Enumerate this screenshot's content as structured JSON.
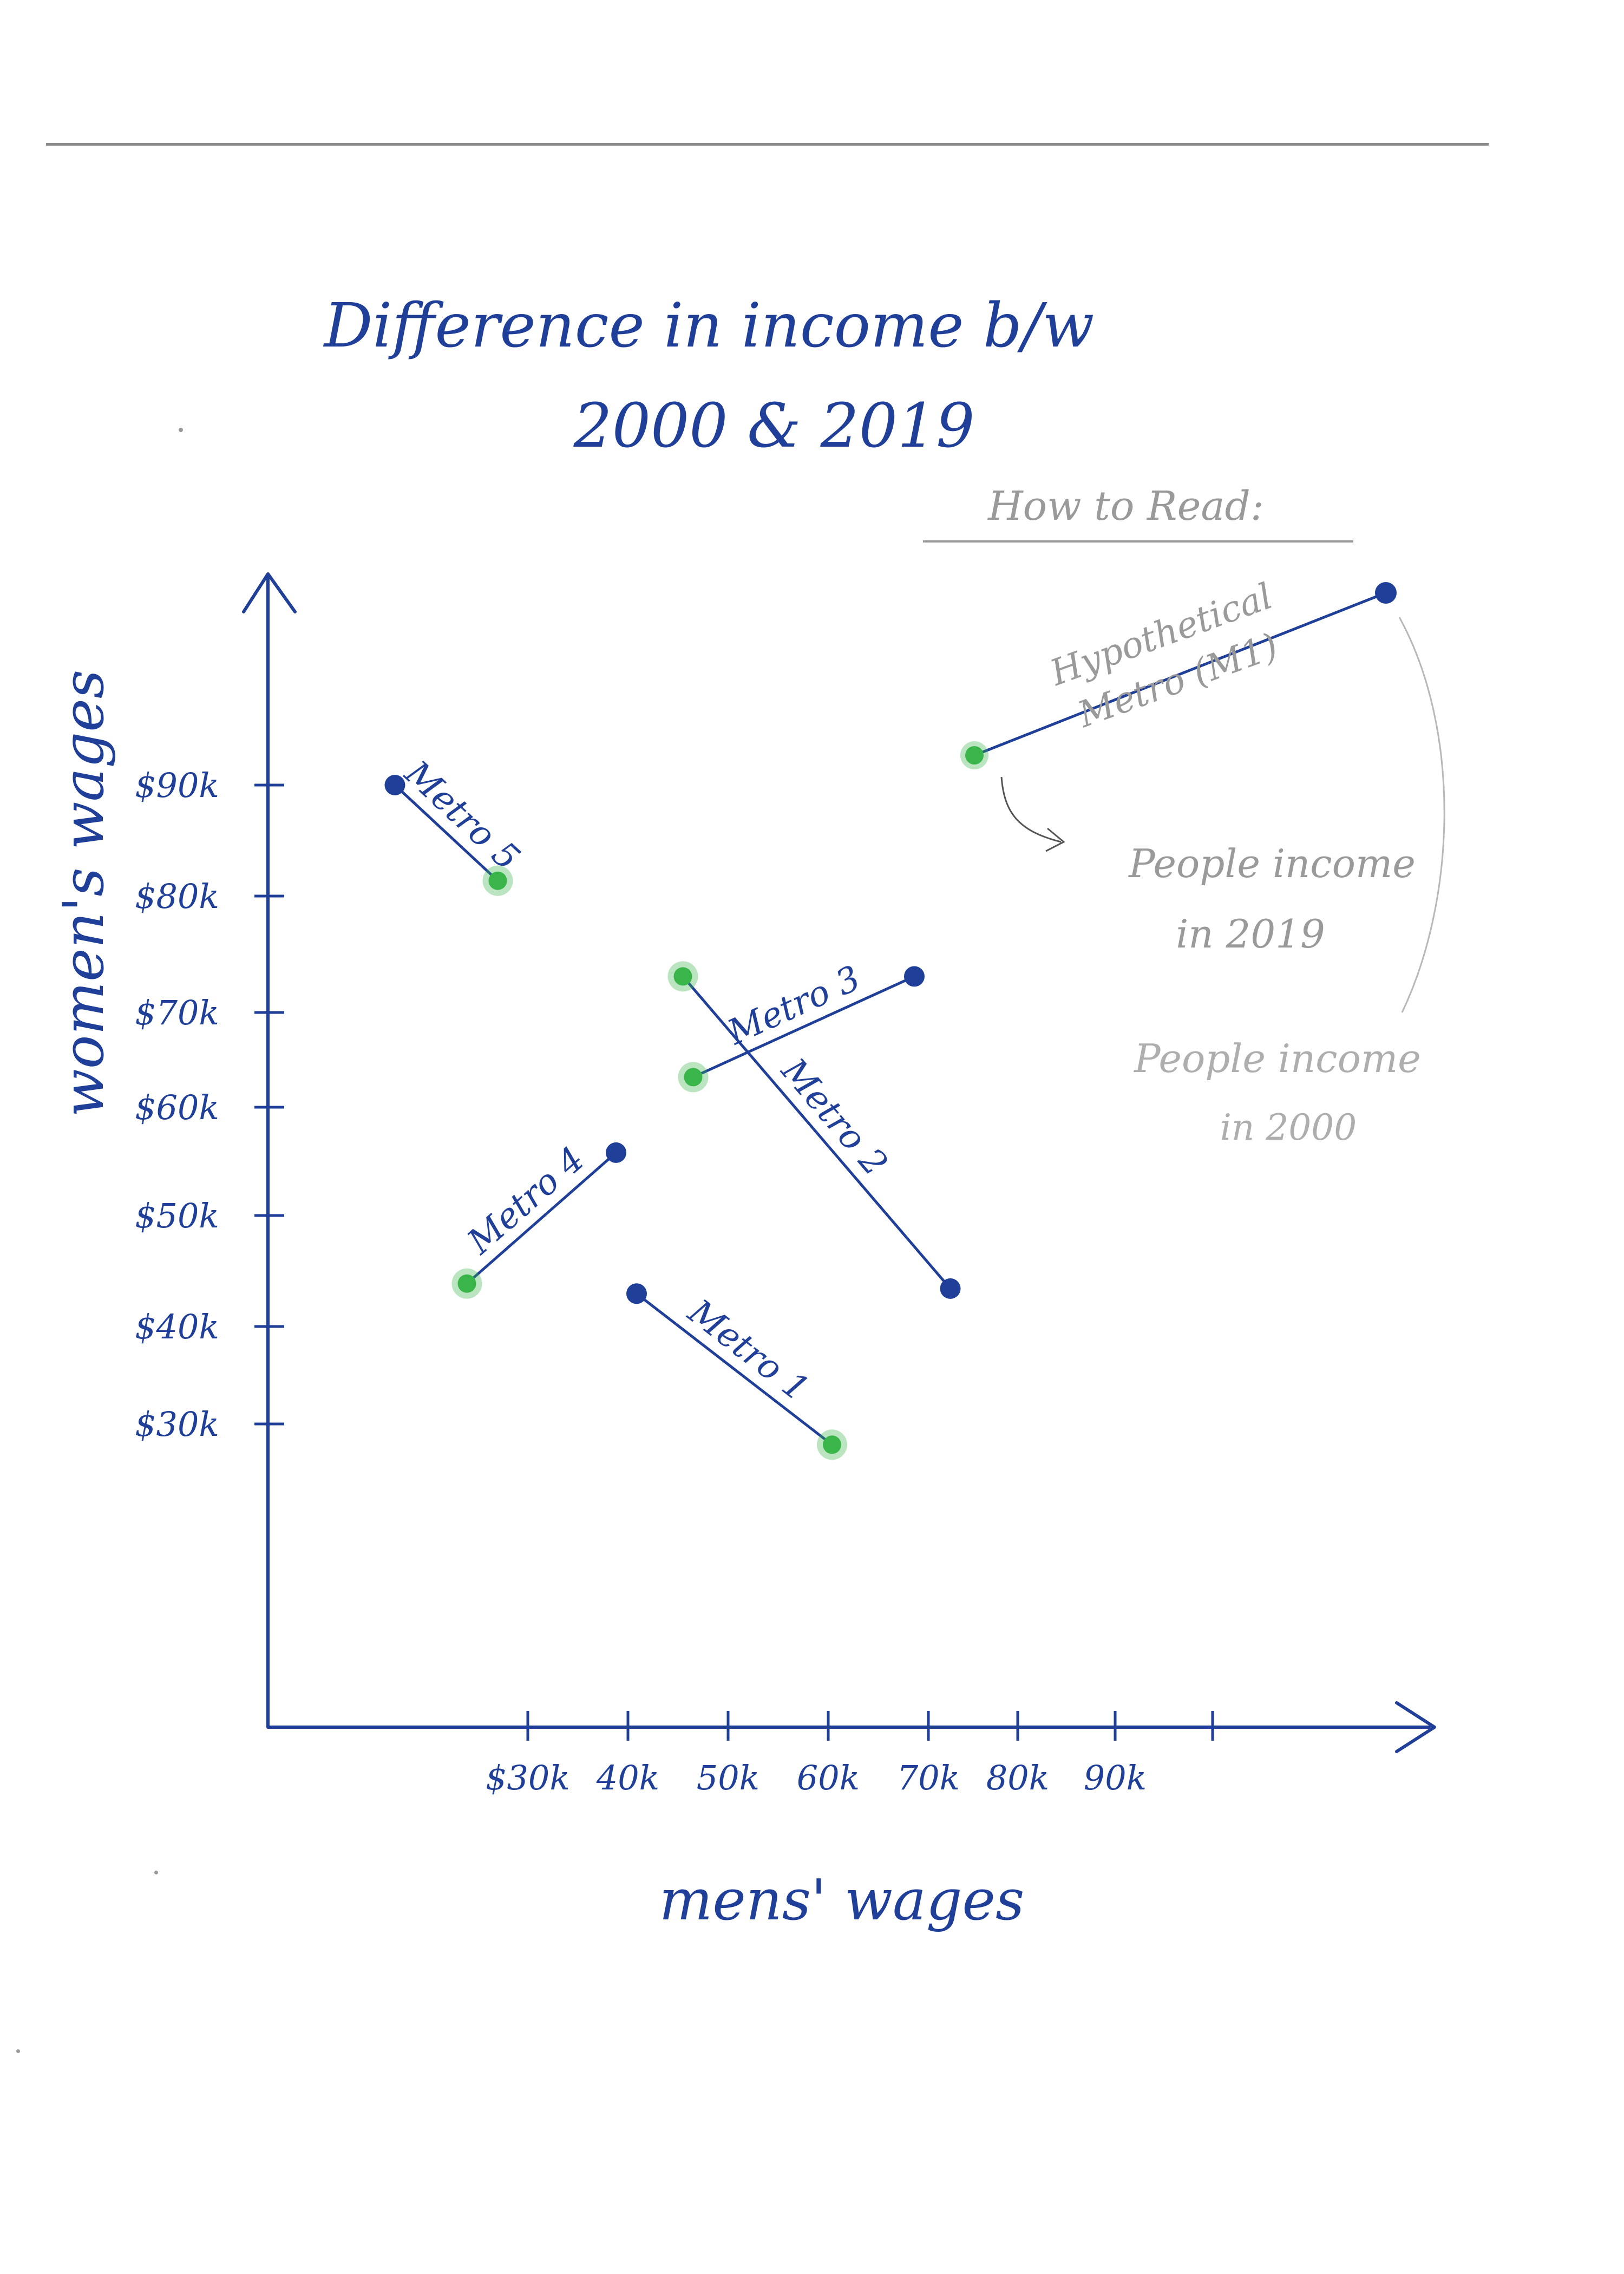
{
  "chart_data": {
    "type": "scatter",
    "title_line1": "Difference in income b/w",
    "title_line2": "2000 & 2019",
    "xlabel": "mens' wages",
    "ylabel": "women's wages",
    "x_ticks": [
      "$30k",
      "40k",
      "50k",
      "60k",
      "70k",
      "80k",
      "90k"
    ],
    "y_ticks": [
      "$90k",
      "$80k",
      "$70k",
      "$60k",
      "$50k",
      "$40k",
      "$30k"
    ],
    "colors": {
      "year_2000": "#1f3f99",
      "year_2019": "#39b54a",
      "ink": "#1f3f99"
    },
    "series": [
      {
        "name": "Metro 1",
        "from_2000": {
          "x": 44,
          "y": 39.5
        },
        "to_2019": {
          "x": 63,
          "y": 24.5
        }
      },
      {
        "name": "Metro 2",
        "from_2000": {
          "x": 74.5,
          "y": 40
        },
        "to_2019": {
          "x": 48.5,
          "y": 71
        }
      },
      {
        "name": "Metro 3",
        "from_2000": {
          "x": 71,
          "y": 71
        },
        "to_2019": {
          "x": 49.5,
          "y": 61
        }
      },
      {
        "name": "Metro 4",
        "from_2000": {
          "x": 42,
          "y": 53.5
        },
        "to_2019": {
          "x": 27.5,
          "y": 40.5
        }
      },
      {
        "name": "Metro 5",
        "from_2000": {
          "x": 20.5,
          "y": 90
        },
        "to_2019": {
          "x": 30.5,
          "y": 80.5
        }
      }
    ]
  },
  "legend": {
    "heading": "How to Read:",
    "example_label_line1": "Hypothetical",
    "example_label_line2": "Metro (M1)",
    "note_2019_line1": "People income",
    "note_2019_line2": "in 2019",
    "note_2000_line1": "People income",
    "note_2000_line2": "in 2000"
  }
}
